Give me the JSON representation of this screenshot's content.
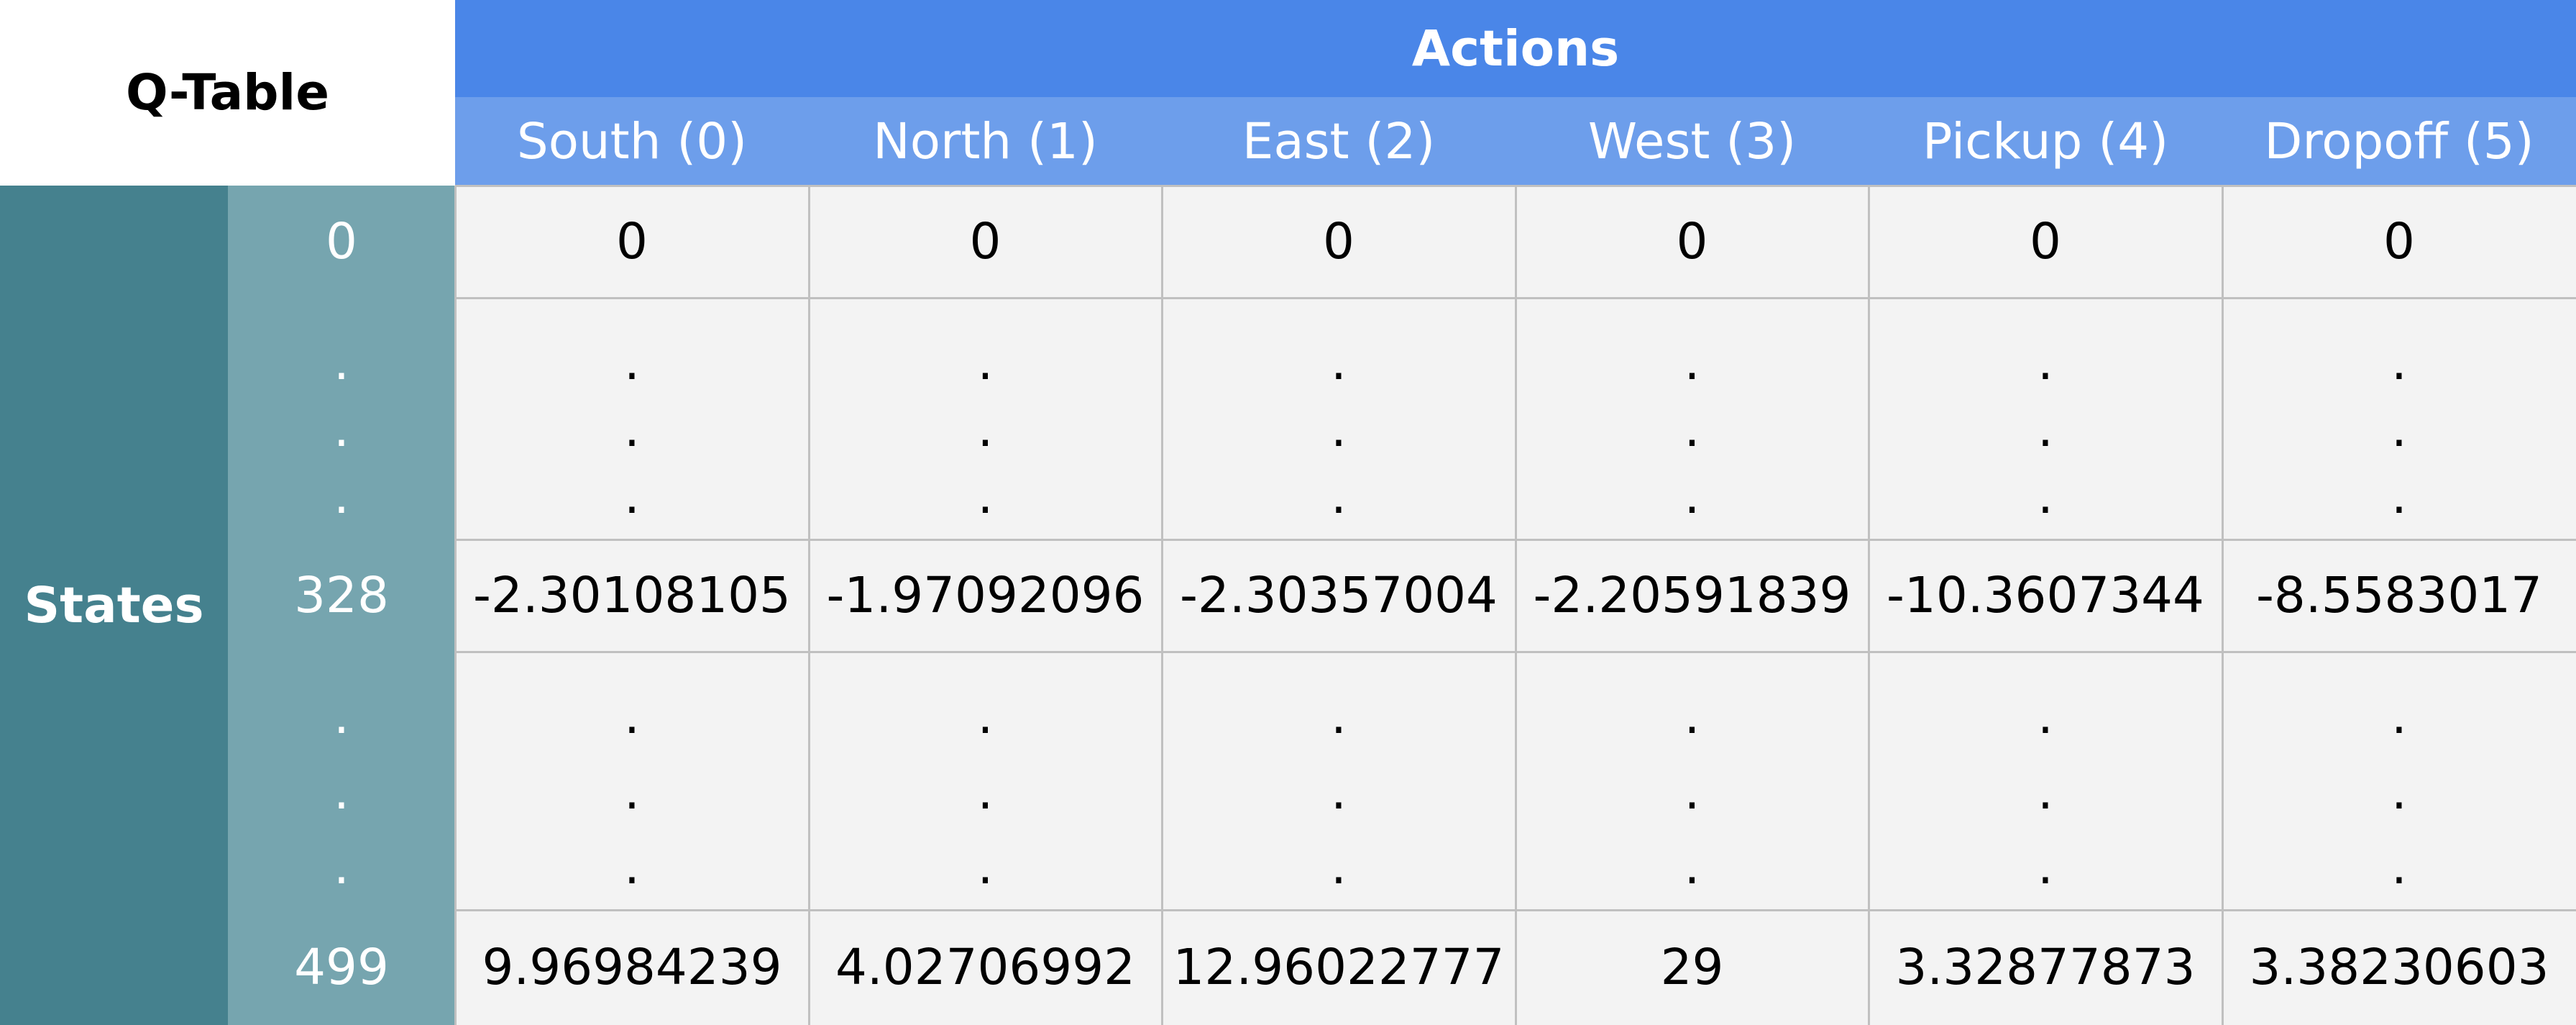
{
  "table": {
    "corner_title": "Q-Table",
    "actions_title": "Actions",
    "states_title": "States",
    "columns": [
      "South (0)",
      "North (1)",
      "East (2)",
      "West (3)",
      "Pickup (4)",
      "Dropoff (5)"
    ],
    "rows": [
      {
        "state": "0",
        "values": [
          "0",
          "0",
          "0",
          "0",
          "0",
          "0"
        ]
      },
      {
        "state": "328",
        "values": [
          "-2.30108105",
          "-1.97092096",
          "-2.30357004",
          "-2.20591839",
          "-10.3607344",
          "-8.5583017"
        ]
      },
      {
        "state": "499",
        "values": [
          "9.96984239",
          "4.02706992",
          "12.96022777",
          "29",
          "3.32877873",
          "3.38230603"
        ]
      }
    ],
    "ellipsis": "."
  },
  "colors": {
    "actions_header": "#4a86e8",
    "column_header": "#6d9eeb",
    "states_label": "#45818e",
    "state_index": "#76a5af",
    "cell_bg": "#f3f3f3",
    "grid_line": "#c0c0c0"
  }
}
